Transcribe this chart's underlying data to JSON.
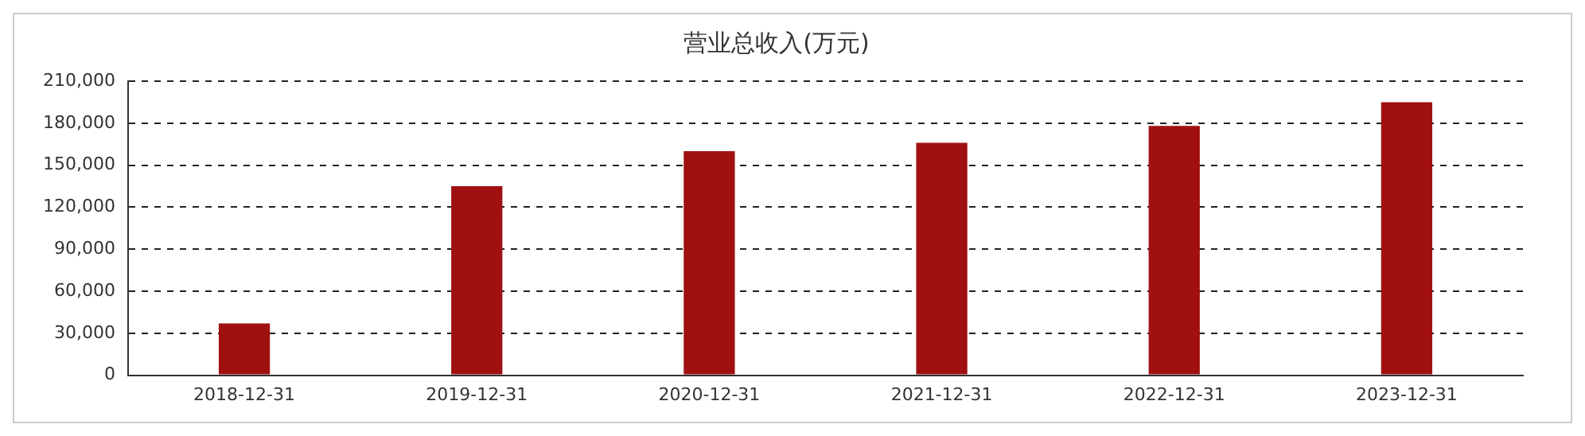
{
  "chart_data": {
    "type": "bar",
    "title": "营业总收入(万元)",
    "categories": [
      "2018-12-31",
      "2019-12-31",
      "2020-12-31",
      "2021-12-31",
      "2022-12-31",
      "2023-12-31"
    ],
    "values": [
      37000,
      135000,
      160000,
      166000,
      178000,
      195000
    ],
    "color": "#a01010",
    "ylim": [
      0,
      210000
    ],
    "yticks": [
      0,
      {
        "value": 30000,
        "label": "30,000"
      },
      {
        "value": 60000,
        "label": "60,000"
      },
      {
        "value": 90000,
        "label": "90,000"
      },
      {
        "value": 120000,
        "label": "120,000"
      },
      {
        "value": 150000,
        "label": "150,000"
      },
      {
        "value": 180000,
        "label": "180,000"
      },
      {
        "value": 210000,
        "label": "210,000"
      }
    ],
    "grid": "y",
    "legend": false
  }
}
